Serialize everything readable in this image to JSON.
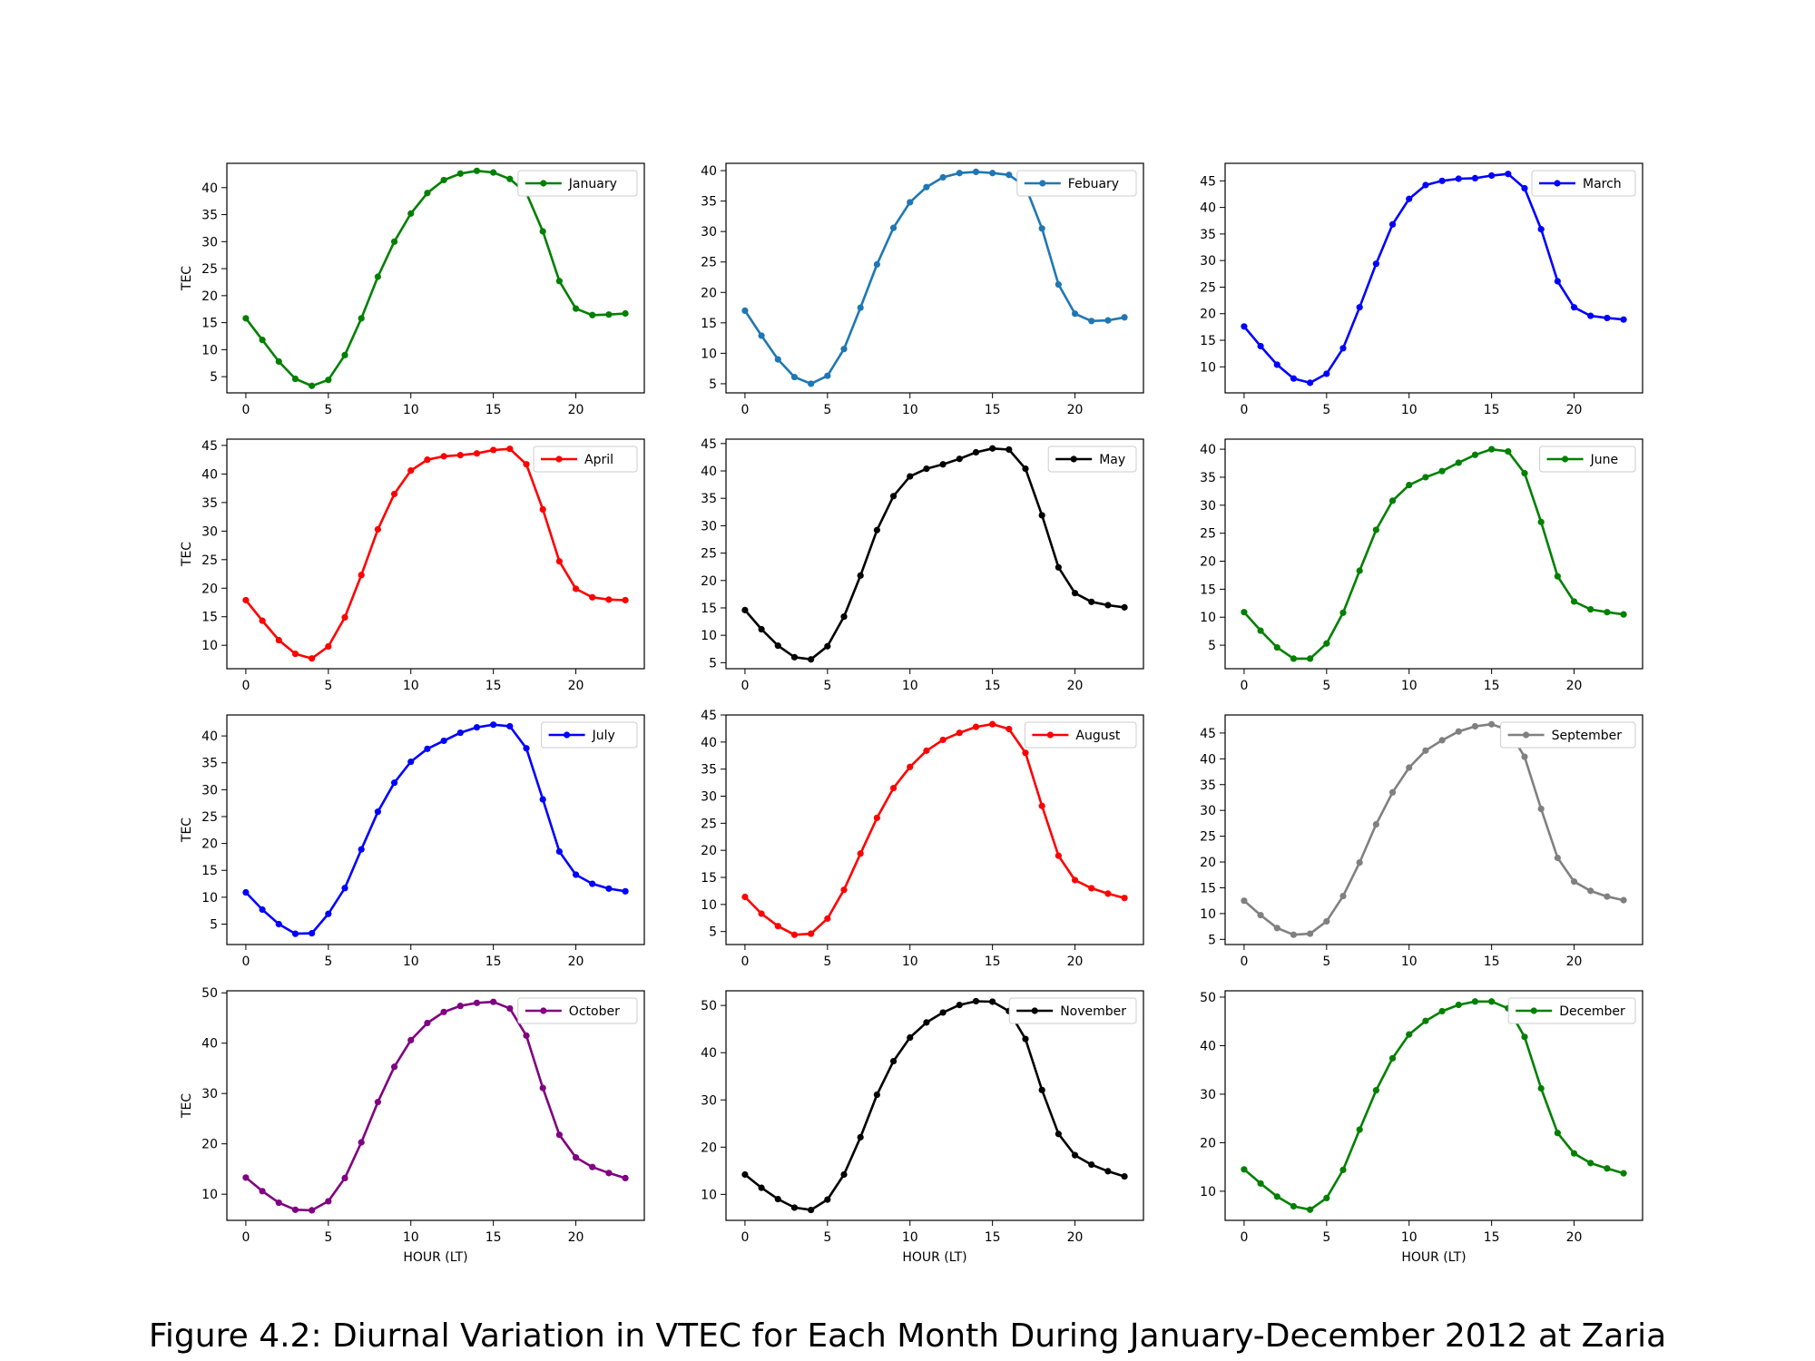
{
  "caption": "Figure 4.2: Diurnal Variation in VTEC for Each Month During January-December 2012 at Zaria",
  "chart_data": [
    {
      "type": "line",
      "series": [
        {
          "name": "January",
          "color": "#008000",
          "values": [
            15.8,
            11.8,
            7.8,
            4.6,
            3.3,
            4.4,
            9.0,
            15.8,
            23.5,
            30.0,
            35.2,
            39.0,
            41.4,
            42.6,
            43.1,
            42.8,
            41.6,
            39.0,
            31.9,
            22.7,
            17.6,
            16.4,
            16.5,
            16.7
          ]
        }
      ],
      "x": [
        0,
        1,
        2,
        3,
        4,
        5,
        6,
        7,
        8,
        9,
        10,
        11,
        12,
        13,
        14,
        15,
        16,
        17,
        18,
        19,
        20,
        21,
        22,
        23
      ],
      "ylim": [
        2.0,
        44.5
      ],
      "yticks": [
        5,
        10,
        15,
        20,
        25,
        30,
        35,
        40
      ],
      "xlim": [
        -1.15,
        24.15
      ],
      "xticks": [
        0,
        5,
        10,
        15,
        20
      ],
      "ylabel": "TEC",
      "xlabel": ""
    },
    {
      "type": "line",
      "series": [
        {
          "name": "Febuary",
          "color": "#1f77b4",
          "values": [
            17.0,
            12.9,
            9.0,
            6.1,
            5.0,
            6.3,
            10.7,
            17.5,
            24.6,
            30.6,
            34.8,
            37.3,
            38.9,
            39.6,
            39.8,
            39.6,
            39.3,
            37.4,
            30.5,
            21.3,
            16.5,
            15.3,
            15.4,
            15.9
          ]
        }
      ],
      "x": [
        0,
        1,
        2,
        3,
        4,
        5,
        6,
        7,
        8,
        9,
        10,
        11,
        12,
        13,
        14,
        15,
        16,
        17,
        18,
        19,
        20,
        21,
        22,
        23
      ],
      "ylim": [
        3.5,
        41.2
      ],
      "yticks": [
        5,
        10,
        15,
        20,
        25,
        30,
        35,
        40
      ],
      "xlim": [
        -1.15,
        24.15
      ],
      "xticks": [
        0,
        5,
        10,
        15,
        20
      ],
      "ylabel": "",
      "xlabel": ""
    },
    {
      "type": "line",
      "series": [
        {
          "name": "March",
          "color": "#0000ff",
          "values": [
            17.6,
            13.9,
            10.4,
            7.8,
            7.0,
            8.7,
            13.5,
            21.2,
            29.4,
            36.8,
            41.6,
            44.2,
            45.0,
            45.4,
            45.5,
            46.0,
            46.3,
            43.6,
            35.9,
            26.1,
            21.2,
            19.6,
            19.2,
            18.9
          ]
        }
      ],
      "x": [
        0,
        1,
        2,
        3,
        4,
        5,
        6,
        7,
        8,
        9,
        10,
        11,
        12,
        13,
        14,
        15,
        16,
        17,
        18,
        19,
        20,
        21,
        22,
        23
      ],
      "ylim": [
        5.1,
        48.3
      ],
      "yticks": [
        10,
        15,
        20,
        25,
        30,
        35,
        40,
        45
      ],
      "xlim": [
        -1.15,
        24.15
      ],
      "xticks": [
        0,
        5,
        10,
        15,
        20
      ],
      "ylabel": "",
      "xlabel": ""
    },
    {
      "type": "line",
      "series": [
        {
          "name": "April",
          "color": "#ff0000",
          "values": [
            17.9,
            14.3,
            10.9,
            8.5,
            7.7,
            9.8,
            14.9,
            22.3,
            30.3,
            36.5,
            40.6,
            42.5,
            43.1,
            43.3,
            43.6,
            44.2,
            44.4,
            41.7,
            33.8,
            24.7,
            19.9,
            18.4,
            18.0,
            17.9
          ]
        }
      ],
      "x": [
        0,
        1,
        2,
        3,
        4,
        5,
        6,
        7,
        8,
        9,
        10,
        11,
        12,
        13,
        14,
        15,
        16,
        17,
        18,
        19,
        20,
        21,
        22,
        23
      ],
      "ylim": [
        5.9,
        46.1
      ],
      "yticks": [
        10,
        15,
        20,
        25,
        30,
        35,
        40,
        45
      ],
      "xlim": [
        -1.15,
        24.15
      ],
      "xticks": [
        0,
        5,
        10,
        15,
        20
      ],
      "ylabel": "TEC",
      "xlabel": ""
    },
    {
      "type": "line",
      "series": [
        {
          "name": "May",
          "color": "#000000",
          "values": [
            14.6,
            11.1,
            8.1,
            6.0,
            5.6,
            8.0,
            13.4,
            20.9,
            29.2,
            35.4,
            39.0,
            40.4,
            41.2,
            42.2,
            43.4,
            44.1,
            43.9,
            40.4,
            31.9,
            22.4,
            17.7,
            16.1,
            15.5,
            15.1
          ]
        }
      ],
      "x": [
        0,
        1,
        2,
        3,
        4,
        5,
        6,
        7,
        8,
        9,
        10,
        11,
        12,
        13,
        14,
        15,
        16,
        17,
        18,
        19,
        20,
        21,
        22,
        23
      ],
      "ylim": [
        3.9,
        45.8
      ],
      "yticks": [
        5,
        10,
        15,
        20,
        25,
        30,
        35,
        40,
        45
      ],
      "xlim": [
        -1.15,
        24.15
      ],
      "xticks": [
        0,
        5,
        10,
        15,
        20
      ],
      "ylabel": "",
      "xlabel": ""
    },
    {
      "type": "line",
      "series": [
        {
          "name": "June",
          "color": "#008000",
          "values": [
            10.9,
            7.6,
            4.6,
            2.6,
            2.6,
            5.3,
            10.8,
            18.3,
            25.6,
            30.8,
            33.6,
            35.0,
            36.1,
            37.6,
            39.0,
            40.0,
            39.6,
            35.7,
            27.0,
            17.3,
            12.8,
            11.4,
            10.9,
            10.5
          ]
        }
      ],
      "x": [
        0,
        1,
        2,
        3,
        4,
        5,
        6,
        7,
        8,
        9,
        10,
        11,
        12,
        13,
        14,
        15,
        16,
        17,
        18,
        19,
        20,
        21,
        22,
        23
      ],
      "ylim": [
        0.8,
        41.8
      ],
      "yticks": [
        5,
        10,
        15,
        20,
        25,
        30,
        35,
        40
      ],
      "xlim": [
        -1.15,
        24.15
      ],
      "xticks": [
        0,
        5,
        10,
        15,
        20
      ],
      "ylabel": "",
      "xlabel": ""
    },
    {
      "type": "line",
      "series": [
        {
          "name": "July",
          "color": "#0000ff",
          "values": [
            10.9,
            7.7,
            5.0,
            3.2,
            3.3,
            6.9,
            11.7,
            18.9,
            25.9,
            31.3,
            35.2,
            37.6,
            39.1,
            40.6,
            41.6,
            42.1,
            41.8,
            37.7,
            28.2,
            18.5,
            14.2,
            12.5,
            11.6,
            11.1
          ]
        }
      ],
      "x": [
        0,
        1,
        2,
        3,
        4,
        5,
        6,
        7,
        8,
        9,
        10,
        11,
        12,
        13,
        14,
        15,
        16,
        17,
        18,
        19,
        20,
        21,
        22,
        23
      ],
      "ylim": [
        1.2,
        43.9
      ],
      "yticks": [
        5,
        10,
        15,
        20,
        25,
        30,
        35,
        40
      ],
      "xlim": [
        -1.15,
        24.15
      ],
      "xticks": [
        0,
        5,
        10,
        15,
        20
      ],
      "ylabel": "TEC",
      "xlabel": ""
    },
    {
      "type": "line",
      "series": [
        {
          "name": "August",
          "color": "#ff0000",
          "values": [
            11.4,
            8.3,
            6.0,
            4.4,
            4.6,
            7.4,
            12.7,
            19.4,
            26.0,
            31.5,
            35.4,
            38.4,
            40.4,
            41.7,
            42.8,
            43.3,
            42.4,
            38.0,
            28.2,
            19.0,
            14.5,
            13.0,
            12.0,
            11.2
          ]
        }
      ],
      "x": [
        0,
        1,
        2,
        3,
        4,
        5,
        6,
        7,
        8,
        9,
        10,
        11,
        12,
        13,
        14,
        15,
        16,
        17,
        18,
        19,
        20,
        21,
        22,
        23
      ],
      "ylim": [
        2.6,
        45.0
      ],
      "yticks": [
        5,
        10,
        15,
        20,
        25,
        30,
        35,
        40,
        45
      ],
      "xlim": [
        -1.15,
        24.15
      ],
      "xticks": [
        0,
        5,
        10,
        15,
        20
      ],
      "ylabel": "",
      "xlabel": ""
    },
    {
      "type": "line",
      "series": [
        {
          "name": "September",
          "color": "#808080",
          "values": [
            12.5,
            9.7,
            7.2,
            5.9,
            6.1,
            8.5,
            13.4,
            19.9,
            27.3,
            33.5,
            38.3,
            41.6,
            43.6,
            45.3,
            46.3,
            46.7,
            45.6,
            40.4,
            30.3,
            20.8,
            16.2,
            14.4,
            13.3,
            12.6
          ]
        }
      ],
      "x": [
        0,
        1,
        2,
        3,
        4,
        5,
        6,
        7,
        8,
        9,
        10,
        11,
        12,
        13,
        14,
        15,
        16,
        17,
        18,
        19,
        20,
        21,
        22,
        23
      ],
      "ylim": [
        4.0,
        48.5
      ],
      "yticks": [
        5,
        10,
        15,
        20,
        25,
        30,
        35,
        40,
        45
      ],
      "xlim": [
        -1.15,
        24.15
      ],
      "xticks": [
        0,
        5,
        10,
        15,
        20
      ],
      "ylabel": "",
      "xlabel": ""
    },
    {
      "type": "line",
      "series": [
        {
          "name": "October",
          "color": "#800080",
          "values": [
            13.3,
            10.6,
            8.3,
            6.9,
            6.8,
            8.6,
            13.2,
            20.3,
            28.3,
            35.3,
            40.6,
            44.0,
            46.2,
            47.4,
            48.0,
            48.2,
            46.9,
            41.5,
            31.1,
            21.8,
            17.3,
            15.4,
            14.2,
            13.2
          ]
        }
      ],
      "x": [
        0,
        1,
        2,
        3,
        4,
        5,
        6,
        7,
        8,
        9,
        10,
        11,
        12,
        13,
        14,
        15,
        16,
        17,
        18,
        19,
        20,
        21,
        22,
        23
      ],
      "ylim": [
        4.8,
        50.4
      ],
      "yticks": [
        10,
        20,
        30,
        40,
        50
      ],
      "xlim": [
        -1.15,
        24.15
      ],
      "xticks": [
        0,
        5,
        10,
        15,
        20
      ],
      "ylabel": "TEC",
      "xlabel": "HOUR (LT)"
    },
    {
      "type": "line",
      "series": [
        {
          "name": "November",
          "color": "#000000",
          "values": [
            14.2,
            11.4,
            9.0,
            7.2,
            6.7,
            8.9,
            14.2,
            22.1,
            31.1,
            38.2,
            43.2,
            46.4,
            48.5,
            50.1,
            50.9,
            50.8,
            48.8,
            42.9,
            32.1,
            22.8,
            18.3,
            16.3,
            14.9,
            13.8
          ]
        }
      ],
      "x": [
        0,
        1,
        2,
        3,
        4,
        5,
        6,
        7,
        8,
        9,
        10,
        11,
        12,
        13,
        14,
        15,
        16,
        17,
        18,
        19,
        20,
        21,
        22,
        23
      ],
      "ylim": [
        4.5,
        53.1
      ],
      "yticks": [
        10,
        20,
        30,
        40,
        50
      ],
      "xlim": [
        -1.15,
        24.15
      ],
      "xticks": [
        0,
        5,
        10,
        15,
        20
      ],
      "ylabel": "",
      "xlabel": "HOUR (LT)"
    },
    {
      "type": "line",
      "series": [
        {
          "name": "December",
          "color": "#008000",
          "values": [
            14.5,
            11.6,
            8.9,
            6.9,
            6.2,
            8.6,
            14.4,
            22.7,
            30.8,
            37.4,
            42.3,
            45.1,
            47.1,
            48.4,
            49.1,
            49.1,
            47.7,
            41.8,
            31.2,
            22.0,
            17.8,
            15.8,
            14.7,
            13.7
          ]
        }
      ],
      "x": [
        0,
        1,
        2,
        3,
        4,
        5,
        6,
        7,
        8,
        9,
        10,
        11,
        12,
        13,
        14,
        15,
        16,
        17,
        18,
        19,
        20,
        21,
        22,
        23
      ],
      "ylim": [
        4.0,
        51.3
      ],
      "yticks": [
        10,
        20,
        30,
        40,
        50
      ],
      "xlim": [
        -1.15,
        24.15
      ],
      "xticks": [
        0,
        5,
        10,
        15,
        20
      ],
      "ylabel": "",
      "xlabel": "HOUR (LT)"
    }
  ]
}
